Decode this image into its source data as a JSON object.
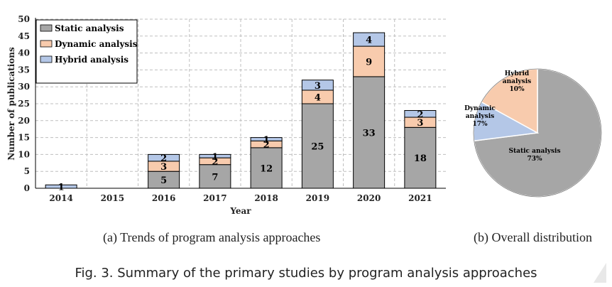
{
  "chart_data": [
    {
      "type": "bar",
      "stacked": true,
      "categories": [
        "2014",
        "2015",
        "2016",
        "2017",
        "2018",
        "2019",
        "2020",
        "2021"
      ],
      "series": [
        {
          "name": "Static analysis",
          "values": [
            0,
            0,
            5,
            7,
            12,
            25,
            33,
            18
          ],
          "color": "#a6a6a6"
        },
        {
          "name": "Dynamic analysis",
          "values": [
            0,
            0,
            3,
            2,
            2,
            4,
            9,
            3
          ],
          "color": "#f8cbad"
        },
        {
          "name": "Hybrid analysis",
          "values": [
            1,
            0,
            2,
            1,
            1,
            3,
            4,
            2
          ],
          "color": "#b4c7e7"
        }
      ],
      "xlabel": "Year",
      "ylabel": "Number of publications",
      "ylim": [
        0,
        50
      ],
      "yticks": [
        0,
        5,
        10,
        15,
        20,
        25,
        30,
        35,
        40,
        45,
        50
      ],
      "grid": true,
      "legend": "top-left"
    },
    {
      "type": "pie",
      "slices": [
        {
          "name": "Static analysis",
          "value": 73,
          "label": "73%",
          "color": "#a6a6a6"
        },
        {
          "name": "Hybrid analysis",
          "value": 10,
          "label": "10%",
          "color": "#b4c7e7"
        },
        {
          "name": "Dynamic analysis",
          "value": 17,
          "label": "17%",
          "color": "#f8cbad"
        }
      ]
    }
  ],
  "captions": {
    "sub_a": "(a) Trends of program analysis approaches",
    "sub_b": "(b) Overall distribution",
    "figure": "Fig. 3. Summary of the primary studies by program analysis approaches"
  }
}
